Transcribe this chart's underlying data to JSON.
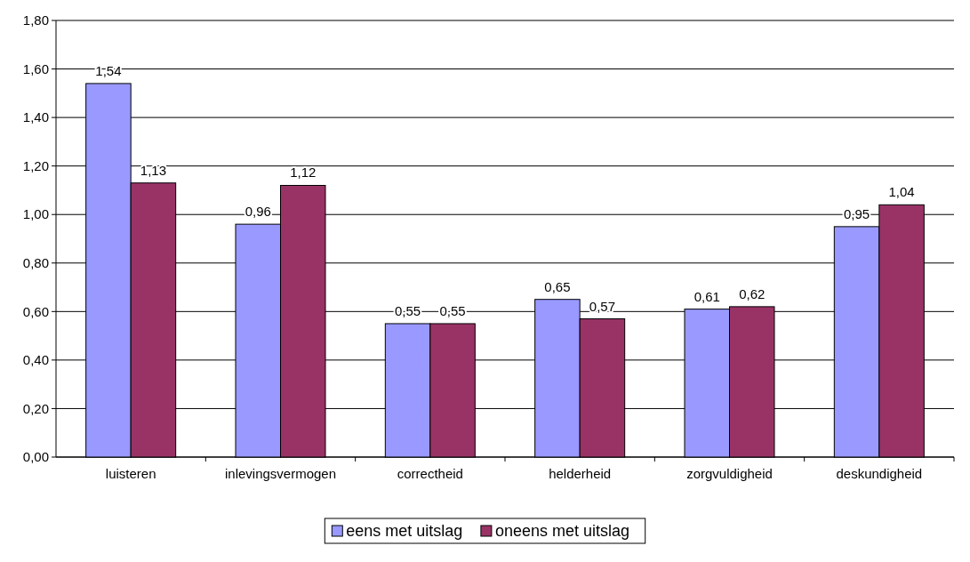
{
  "chart_data": {
    "type": "bar",
    "categories": [
      "luisteren",
      "inlevingsvermogen",
      "correctheid",
      "helderheid",
      "zorgvuldigheid",
      "deskundigheid"
    ],
    "series": [
      {
        "name": "eens met uitslag",
        "color": "#9999ff",
        "values": [
          1.54,
          0.96,
          0.55,
          0.65,
          0.61,
          0.95
        ],
        "value_labels": [
          "1,54",
          "0,96",
          "0,55",
          "0,65",
          "0,61",
          "0,95"
        ]
      },
      {
        "name": "oneens met uitslag",
        "color": "#993366",
        "values": [
          1.13,
          1.12,
          0.55,
          0.57,
          0.62,
          1.04
        ],
        "value_labels": [
          "1,13",
          "1,12",
          "0,55",
          "0,57",
          "0,62",
          "1,04"
        ]
      }
    ],
    "ylim": [
      0,
      1.8
    ],
    "yticks": [
      {
        "value": 0,
        "label": "0,00"
      },
      {
        "value": 0.2,
        "label": "0,20"
      },
      {
        "value": 0.4,
        "label": "0,40"
      },
      {
        "value": 0.6,
        "label": "0,60"
      },
      {
        "value": 0.8,
        "label": "0,80"
      },
      {
        "value": 1,
        "label": "1,00"
      },
      {
        "value": 1.2,
        "label": "1,20"
      },
      {
        "value": 1.4,
        "label": "1,40"
      },
      {
        "value": 1.6,
        "label": "1,60"
      },
      {
        "value": 1.8,
        "label": "1,80"
      }
    ],
    "grid": "y",
    "legend": "bottom"
  }
}
